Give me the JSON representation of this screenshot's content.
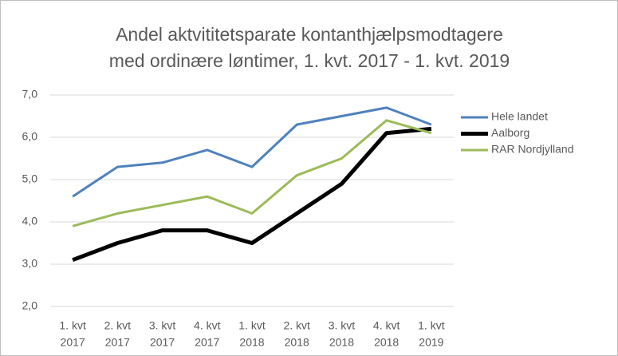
{
  "chart_data": {
    "type": "line",
    "title": [
      "Andel aktvititetsparate kontanthjælpsmodtagere",
      "med ordinære løntimer, 1. kvt. 2017 - 1. kvt. 2019"
    ],
    "categories": [
      [
        "1. kvt",
        "2017"
      ],
      [
        "2. kvt",
        "2017"
      ],
      [
        "3. kvt",
        "2017"
      ],
      [
        "4. kvt",
        "2017"
      ],
      [
        "1. kvt",
        "2018"
      ],
      [
        "2. kvt",
        "2018"
      ],
      [
        "3. kvt",
        "2018"
      ],
      [
        "4. kvt",
        "2018"
      ],
      [
        "1. kvt",
        "2019"
      ]
    ],
    "series": [
      {
        "name": "Hele landet",
        "color": "#4f81bd",
        "values": [
          4.6,
          5.3,
          5.4,
          5.7,
          5.3,
          6.3,
          6.5,
          6.7,
          6.3
        ]
      },
      {
        "name": "Aalborg",
        "color": "#000000",
        "values": [
          3.1,
          3.5,
          3.8,
          3.8,
          3.5,
          4.2,
          4.9,
          6.1,
          6.2
        ]
      },
      {
        "name": "RAR Nordjylland",
        "color": "#9bbb59",
        "values": [
          3.9,
          4.2,
          4.4,
          4.6,
          4.2,
          5.1,
          5.5,
          6.4,
          6.1
        ]
      }
    ],
    "ylim": [
      2,
      7
    ],
    "yticks": [
      {
        "value": 2,
        "label": "2,0"
      },
      {
        "value": 3,
        "label": "3,0"
      },
      {
        "value": 4,
        "label": "4,0"
      },
      {
        "value": 5,
        "label": "5,0"
      },
      {
        "value": 6,
        "label": "6,0"
      },
      {
        "value": 7,
        "label": "7,0"
      }
    ],
    "grid": true,
    "legend": "right"
  }
}
